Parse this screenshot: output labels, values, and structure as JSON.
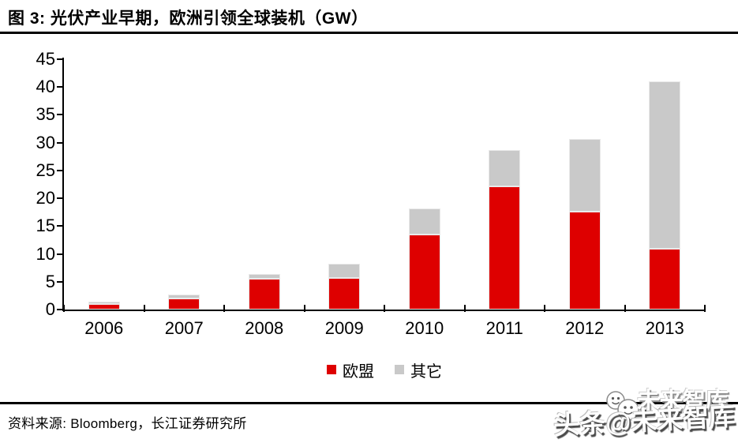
{
  "title": "图 3: 光伏产业早期，欧洲引领全球装机（GW）",
  "source": "资料来源: Bloomberg，长江证券研究所",
  "watermark": {
    "ghost": "未来智库",
    "main": "头条@未来智库"
  },
  "colors": {
    "eu_red": "#de0000",
    "other_gray": "#c9c9c9",
    "axis": "#000000"
  },
  "chart_data": {
    "type": "bar",
    "stacked": true,
    "title": "光伏产业早期，欧洲引领全球装机（GW）",
    "xlabel": "",
    "ylabel": "GW",
    "categories": [
      "2006",
      "2007",
      "2008",
      "2009",
      "2010",
      "2011",
      "2012",
      "2013"
    ],
    "series": [
      {
        "key": "eu",
        "name": "欧盟",
        "color": "#de0000",
        "values": [
          1.0,
          2.0,
          5.5,
          5.7,
          13.5,
          22.1,
          17.6,
          10.9
        ]
      },
      {
        "key": "other",
        "name": "其它",
        "color": "#c9c9c9",
        "values": [
          0.4,
          0.7,
          0.9,
          2.5,
          4.6,
          6.6,
          13.0,
          30.1
        ]
      }
    ],
    "totals": [
      1.4,
      2.7,
      6.4,
      8.2,
      18.1,
      28.7,
      30.6,
      41.0
    ],
    "ylim": [
      0,
      45
    ],
    "yticks": [
      0,
      5,
      10,
      15,
      20,
      25,
      30,
      35,
      40,
      45
    ],
    "grid": false,
    "legend_position": "bottom"
  }
}
